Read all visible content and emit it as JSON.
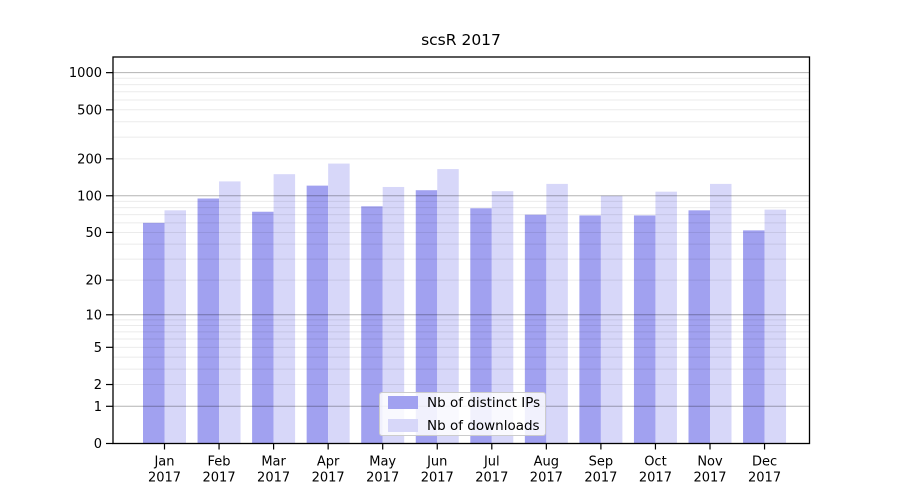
{
  "chart": {
    "title": "scsR 2017"
  },
  "chart_data": {
    "type": "bar",
    "title": "scsR 2017",
    "categories": [
      "Jan",
      "Feb",
      "Mar",
      "Apr",
      "May",
      "Jun",
      "Jul",
      "Aug",
      "Sep",
      "Oct",
      "Nov",
      "Dec"
    ],
    "year": "2017",
    "series": [
      {
        "name": "Nb of distinct IPs",
        "color": "#a1a1f0",
        "values": [
          60,
          95,
          74,
          121,
          82,
          111,
          79,
          70,
          69,
          69,
          76,
          52
        ]
      },
      {
        "name": "Nb of downloads",
        "color": "#d7d7f9",
        "values": [
          76,
          131,
          150,
          183,
          118,
          165,
          109,
          125,
          100,
          108,
          125,
          77
        ]
      }
    ],
    "y_scale": "log10(1+v)",
    "y_ticks": [
      0,
      1,
      2,
      5,
      10,
      20,
      50,
      100,
      200,
      500,
      1000
    ],
    "y_major_gridlines": [
      1,
      10,
      100,
      1000
    ],
    "ylim": [
      0,
      1330
    ],
    "xlabel": "",
    "ylabel": "",
    "grid": true,
    "legend_position": "lower center",
    "colors": {
      "major_grid": "rgba(0,0,0,0.30)",
      "minor_grid": "rgba(0,0,0,0.08)",
      "spine": "#000000"
    }
  }
}
